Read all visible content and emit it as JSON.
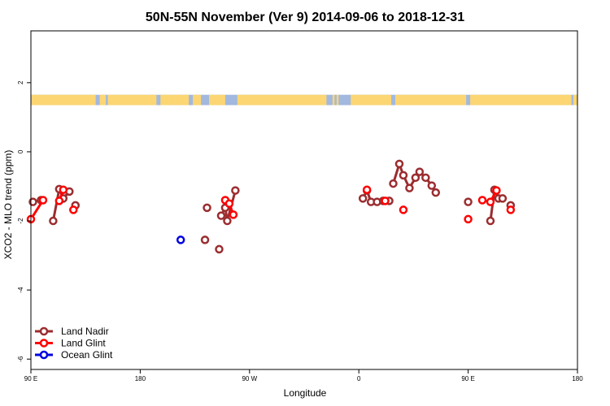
{
  "chart_data": {
    "type": "line",
    "title": "50N-55N November (Ver 9)   2014-09-06 to 2018-12-31",
    "xlabel": "Longitude",
    "ylabel": "XCO2 - MLO trend (ppm)",
    "xlim": [
      -90,
      180
    ],
    "ylim": [
      -6.3,
      3.5
    ],
    "x_ticks": [
      {
        "value": -90,
        "label": "90 E"
      },
      {
        "value": -36,
        "label": "180"
      },
      {
        "value": 18,
        "label": "90 W"
      },
      {
        "value": 72,
        "label": "0"
      },
      {
        "value": 126,
        "label": "90 E"
      },
      {
        "value": 180,
        "label": "180"
      }
    ],
    "y_ticks": [
      -6,
      -4,
      -2,
      0,
      2
    ],
    "legend_position": "bottom-left",
    "land_mask": {
      "y_range": [
        1.35,
        1.65
      ],
      "land_color": "#FBD673",
      "ocean_color": "#A2B8DE",
      "land_spans": [
        [
          -90,
          -58
        ],
        [
          -56,
          -53
        ],
        [
          -52,
          -28
        ],
        [
          -26,
          -12
        ],
        [
          -10,
          -6
        ],
        [
          -2,
          6
        ],
        [
          12,
          56
        ],
        [
          59,
          60
        ],
        [
          61,
          62
        ],
        [
          68,
          88
        ],
        [
          90,
          125
        ],
        [
          127,
          177
        ],
        [
          178,
          180
        ]
      ]
    },
    "series": [
      {
        "name": "Land Nadir",
        "color": "#9B2D30",
        "segments": [
          [
            [
              -89,
              -1.45
            ],
            [
              -85,
              -1.4
            ]
          ],
          [
            [
              -79,
              -2.0
            ],
            [
              -76,
              -1.08
            ],
            [
              -74,
              -1.35
            ],
            [
              -71,
              -1.15
            ]
          ],
          [
            [
              -68,
              -1.55
            ]
          ],
          [
            [
              3,
              -2.82
            ]
          ],
          [
            [
              -4,
              -2.55
            ]
          ],
          [
            [
              -3,
              -1.62
            ]
          ],
          [
            [
              4,
              -1.85
            ],
            [
              6,
              -1.62
            ],
            [
              7,
              -2.0
            ],
            [
              11,
              -1.12
            ]
          ],
          [
            [
              74,
              -1.35
            ],
            [
              76,
              -1.12
            ],
            [
              78,
              -1.45
            ],
            [
              81,
              -1.45
            ],
            [
              84,
              -1.42
            ],
            [
              87,
              -1.42
            ]
          ],
          [
            [
              89,
              -0.92
            ],
            [
              92,
              -0.35
            ],
            [
              94,
              -0.68
            ],
            [
              97,
              -1.05
            ],
            [
              100,
              -0.75
            ],
            [
              102,
              -0.58
            ],
            [
              105,
              -0.75
            ],
            [
              108,
              -0.98
            ],
            [
              110,
              -1.18
            ]
          ],
          [
            [
              126,
              -1.45
            ]
          ],
          [
            [
              137,
              -2.0
            ],
            [
              139,
              -1.1
            ],
            [
              141,
              -1.35
            ],
            [
              143,
              -1.35
            ]
          ],
          [
            [
              147,
              -1.55
            ]
          ]
        ]
      },
      {
        "name": "Land Glint",
        "color": "#FF0000",
        "segments": [
          [
            [
              -90,
              -1.95
            ],
            [
              -84,
              -1.4
            ]
          ],
          [
            [
              -76,
              -1.42
            ],
            [
              -74,
              -1.1
            ]
          ],
          [
            [
              -69,
              -1.68
            ]
          ],
          [
            [
              6,
              -1.4
            ],
            [
              8,
              -1.5
            ],
            [
              10,
              -1.82
            ]
          ],
          [
            [
              76,
              -1.1
            ]
          ],
          [
            [
              85,
              -1.42
            ]
          ],
          [
            [
              94,
              -1.68
            ]
          ],
          [
            [
              126,
              -1.95
            ]
          ],
          [
            [
              133,
              -1.4
            ]
          ],
          [
            [
              137,
              -1.45
            ],
            [
              140,
              -1.12
            ]
          ],
          [
            [
              147,
              -1.68
            ]
          ]
        ]
      },
      {
        "name": "Ocean Glint",
        "color": "#0000E0",
        "segments": [
          [
            [
              -16,
              -2.55
            ]
          ]
        ]
      }
    ]
  }
}
